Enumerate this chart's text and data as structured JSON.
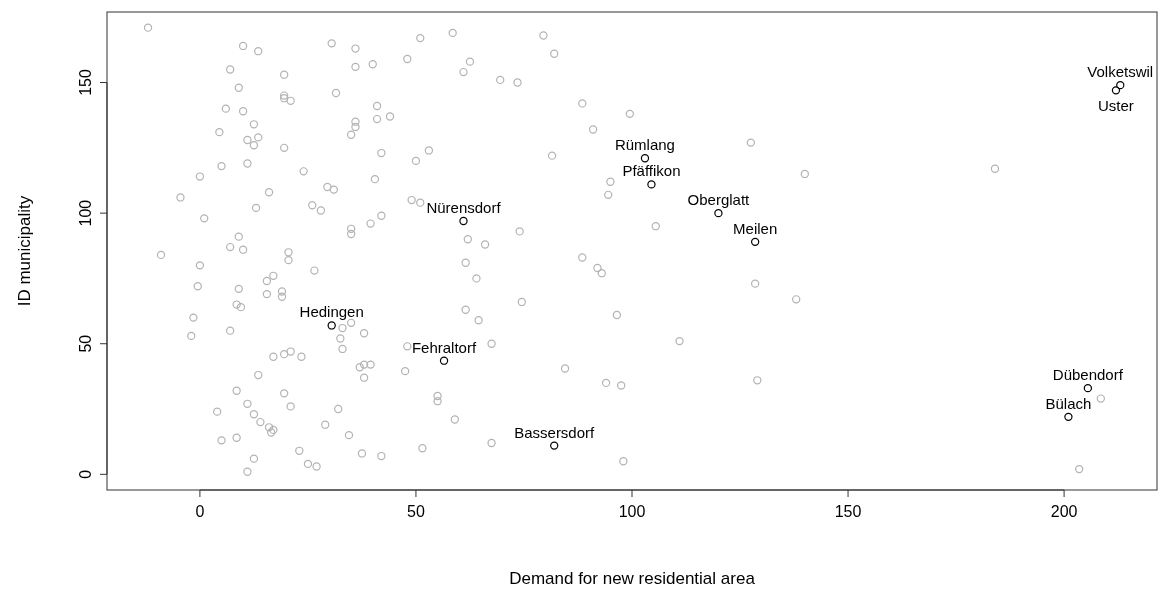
{
  "chart_data": {
    "type": "scatter",
    "xlabel": "Demand for new residential area",
    "ylabel": "ID municipality",
    "xlim": [
      -21.5,
      221.5
    ],
    "ylim": [
      -6,
      177
    ],
    "xticks": [
      0,
      50,
      100,
      150,
      200
    ],
    "yticks": [
      0,
      50,
      100,
      150
    ],
    "grid": false,
    "marker": "circle",
    "series": [
      {
        "color": "#b3b3b3",
        "x": [
          -12,
          10,
          13.5,
          30.5,
          36,
          51,
          58.5,
          79.5,
          82,
          7,
          19.5,
          36,
          40,
          48,
          61,
          62.5,
          69.5,
          73.5,
          9,
          19.5,
          19.5,
          21,
          31.5,
          6,
          10,
          4.5,
          12.5,
          11,
          13.5,
          12.5,
          36,
          36,
          35,
          41,
          41,
          44,
          88.5,
          91,
          99.5,
          127.5,
          5,
          11,
          19.5,
          24,
          42,
          53,
          50,
          81.5,
          -4.5,
          0,
          1,
          16,
          13,
          26,
          28,
          29.5,
          31,
          40.5,
          49,
          51,
          95,
          94.5,
          140,
          184,
          -9,
          0,
          -0.5,
          7,
          9,
          10,
          20.5,
          20.5,
          17,
          15.5,
          26.5,
          35,
          35,
          39.5,
          42,
          62,
          66,
          61.5,
          64,
          74,
          88.5,
          92,
          93,
          105.5,
          128.5,
          138,
          -1.5,
          -2,
          8.5,
          9.5,
          9,
          7,
          15.5,
          19,
          19,
          33,
          35,
          38,
          32.5,
          33,
          61.5,
          64.5,
          74.5,
          96.5,
          67.5,
          111,
          48,
          17,
          19.5,
          21,
          23.5,
          13.5,
          38,
          39.5,
          37,
          38,
          47.5,
          84.5,
          94,
          97.5,
          129,
          8.5,
          19.5,
          11,
          12.5,
          14,
          16,
          17,
          16.5,
          21,
          32,
          29,
          34.5,
          55,
          55,
          59,
          67.5,
          4,
          5,
          8.5,
          12.5,
          11,
          23,
          25,
          27,
          37.5,
          42,
          51.5,
          98,
          203.5,
          208.5
        ],
        "values": [
          171,
          164,
          162,
          165,
          163,
          167,
          169,
          168,
          161,
          155,
          153,
          156,
          157,
          159,
          154,
          158,
          151,
          150,
          148,
          145,
          144,
          143,
          146,
          140,
          139,
          131,
          134,
          128,
          129,
          126,
          135,
          133,
          130,
          141,
          136,
          137,
          142,
          132,
          138,
          127,
          118,
          119,
          125,
          116,
          123,
          124,
          120,
          122,
          106,
          114,
          98,
          108,
          102,
          103,
          101,
          110,
          109,
          113,
          105,
          104,
          112,
          107,
          115,
          117,
          84,
          80,
          72,
          87,
          91,
          86,
          85,
          82,
          76,
          74,
          78,
          94,
          92,
          96,
          99,
          90,
          88,
          81,
          75,
          93,
          83,
          79,
          77,
          95,
          73,
          67,
          60,
          53,
          65,
          64,
          71,
          55,
          69,
          70,
          68,
          56,
          58,
          54,
          52,
          48,
          63,
          59,
          66,
          61,
          50,
          51,
          49,
          45,
          46,
          47,
          45,
          38,
          42,
          42,
          41,
          37,
          39.5,
          40.5,
          35,
          34,
          36,
          32,
          31,
          27,
          23,
          20,
          18,
          17,
          16,
          26,
          25,
          19,
          15,
          30,
          28,
          21,
          12,
          24,
          13,
          14,
          6,
          1,
          9,
          4,
          3,
          8,
          7,
          10,
          5,
          2,
          29
        ]
      },
      {
        "color": "#000000",
        "x": [
          213,
          212,
          103,
          104.5,
          120,
          128.5,
          61,
          30.5,
          56.5,
          82,
          205.5,
          201
        ],
        "values": [
          149,
          147,
          121,
          111,
          100,
          89,
          97,
          57,
          43.5,
          11,
          33,
          22
        ]
      }
    ],
    "annotations": [
      {
        "text": "Volketswil",
        "x": 213,
        "y": 149
      },
      {
        "text": "Uster",
        "x": 212,
        "y": 147
      },
      {
        "text": "Rümlang",
        "x": 103,
        "y": 121
      },
      {
        "text": "Pfäffikon",
        "x": 104.5,
        "y": 111
      },
      {
        "text": "Oberglatt",
        "x": 120,
        "y": 100
      },
      {
        "text": "Meilen",
        "x": 128.5,
        "y": 89
      },
      {
        "text": "Nürensdorf",
        "x": 61,
        "y": 97
      },
      {
        "text": "Hedingen",
        "x": 30.5,
        "y": 57
      },
      {
        "text": "Fehraltorf",
        "x": 56.5,
        "y": 43.5
      },
      {
        "text": "Bassersdorf",
        "x": 82,
        "y": 11
      },
      {
        "text": "Dübendorf",
        "x": 205.5,
        "y": 33
      },
      {
        "text": "Bülach",
        "x": 201,
        "y": 22
      }
    ]
  }
}
